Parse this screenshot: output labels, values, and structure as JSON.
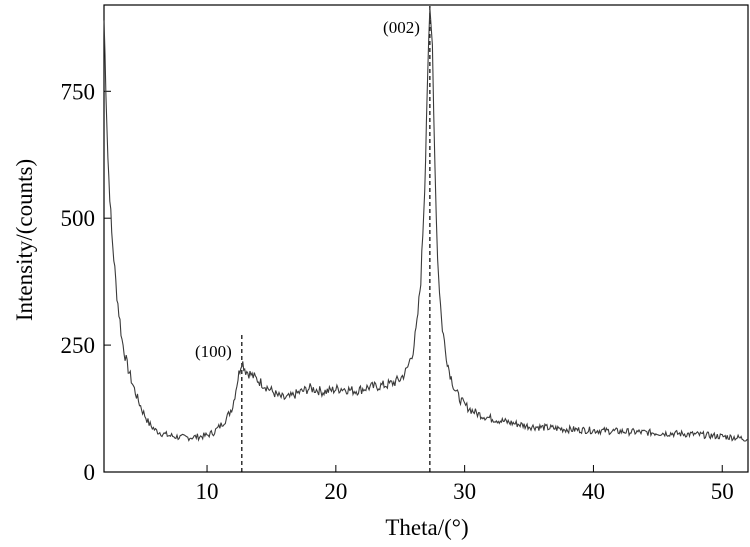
{
  "chart_data": {
    "type": "line",
    "xlabel": "Theta/(°)",
    "ylabel": "Intensity/(counts)",
    "xlim": [
      2,
      52
    ],
    "ylim": [
      0,
      920
    ],
    "xticks": [
      10,
      20,
      30,
      40,
      50
    ],
    "yticks": [
      0,
      250,
      500,
      750
    ],
    "grid": false,
    "line_color": "#3a3a3a",
    "series": [
      {
        "x": [
          2.0,
          2.3,
          2.6,
          3.0,
          3.4,
          3.8,
          4.2,
          4.6,
          5.0,
          5.5,
          6.0,
          6.5,
          7.0,
          7.5,
          8.0,
          8.5,
          9.0,
          9.5,
          10.0,
          10.5,
          11.0,
          11.5,
          12.0,
          12.4,
          12.7,
          13.0,
          13.5,
          14.0,
          14.5,
          15.0,
          15.5,
          16.0,
          16.5,
          17.0,
          17.5,
          18.0,
          18.5,
          19.0,
          19.5,
          20.0,
          20.5,
          21.0,
          21.5,
          22.0,
          22.5,
          23.0,
          23.5,
          24.0,
          24.5,
          25.0,
          25.5,
          26.0,
          26.3,
          26.6,
          26.9,
          27.1,
          27.3,
          27.5,
          27.7,
          27.9,
          28.2,
          28.5,
          28.8,
          29.2,
          29.6,
          30.0,
          30.5,
          31.0,
          31.5,
          32.0,
          33.0,
          34.0,
          35.0,
          36.0,
          37.0,
          38.0,
          39.0,
          40.0,
          41.0,
          42.0,
          43.0,
          44.0,
          45.0,
          46.0,
          47.0,
          48.0,
          49.0,
          50.0,
          51.0,
          52.0
        ],
        "y": [
          890,
          620,
          470,
          350,
          260,
          210,
          175,
          145,
          120,
          95,
          82,
          76,
          72,
          70,
          68,
          68,
          69,
          70,
          72,
          78,
          90,
          105,
          130,
          185,
          220,
          200,
          190,
          180,
          170,
          160,
          150,
          145,
          148,
          155,
          160,
          165,
          162,
          158,
          160,
          163,
          165,
          162,
          160,
          163,
          167,
          168,
          170,
          172,
          176,
          183,
          200,
          240,
          290,
          380,
          560,
          760,
          905,
          840,
          600,
          420,
          300,
          240,
          200,
          165,
          145,
          132,
          122,
          115,
          110,
          106,
          100,
          95,
          90,
          88,
          86,
          84,
          83,
          82,
          81,
          80,
          79,
          78,
          77,
          76,
          75,
          74,
          72,
          70,
          68,
          65
        ]
      }
    ],
    "annotations": [
      {
        "label": "(100)",
        "x": 12.7,
        "y_top": 270
      },
      {
        "label": "(002)",
        "x": 27.3,
        "y_top": 920
      }
    ]
  }
}
